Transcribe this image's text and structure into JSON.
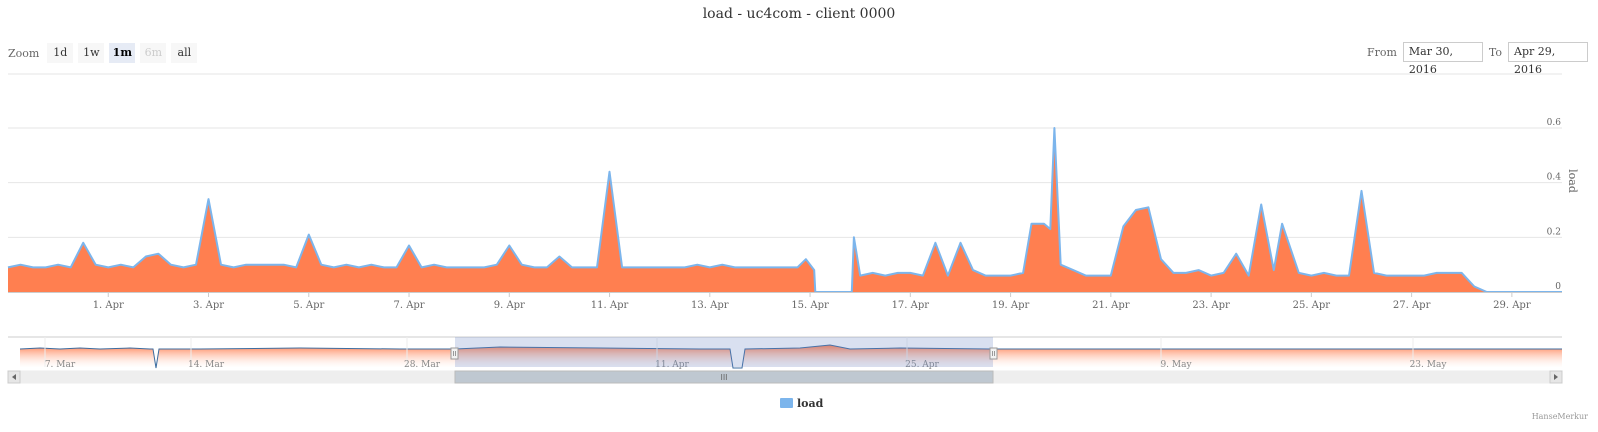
{
  "title": "load - uc4com - client 0000",
  "zoom": {
    "label": "Zoom",
    "buttons": [
      {
        "label": "1d",
        "state": "normal"
      },
      {
        "label": "1w",
        "state": "normal"
      },
      {
        "label": "1m",
        "state": "active"
      },
      {
        "label": "6m",
        "state": "disabled"
      },
      {
        "label": "all",
        "state": "normal"
      }
    ]
  },
  "range": {
    "from_label": "From",
    "from_value": "Mar 30, 2016",
    "to_label": "To",
    "to_value": "Apr 29, 2016"
  },
  "credit": "HanseMerkur",
  "colors": {
    "line": "#7cb5ec",
    "fill": "#ff7f50",
    "grid": "#e6e6e6",
    "navigator_mask": "#c6d6ec"
  },
  "navigator": {
    "tick_labels": [
      "7. Mar",
      "14. Mar",
      "28. Mar",
      "11. Apr",
      "25. Apr",
      "9. May",
      "23. May"
    ],
    "scrollbar_grip": "III"
  },
  "chart_data": {
    "type": "area",
    "xlabel": "",
    "ylabel": "load",
    "ylim": [
      0,
      0.6
    ],
    "yticks": [
      0,
      0.2,
      0.4,
      0.6
    ],
    "xlim": [
      "2016-03-30",
      "2016-04-30"
    ],
    "xtick_labels": [
      "1. Apr",
      "3. Apr",
      "5. Apr",
      "7. Apr",
      "9. Apr",
      "11. Apr",
      "13. Apr",
      "15. Apr",
      "17. Apr",
      "19. Apr",
      "21. Apr",
      "23. Apr",
      "25. Apr",
      "27. Apr",
      "29. Apr"
    ],
    "grid": true,
    "legend": "bottom-center",
    "series": [
      {
        "name": "load",
        "points": [
          [
            "2016-03-30 00:00",
            0.09
          ],
          [
            "2016-03-30 06:00",
            0.1
          ],
          [
            "2016-03-30 12:00",
            0.09
          ],
          [
            "2016-03-30 18:00",
            0.09
          ],
          [
            "2016-03-31 00:00",
            0.1
          ],
          [
            "2016-03-31 06:00",
            0.09
          ],
          [
            "2016-03-31 12:00",
            0.18
          ],
          [
            "2016-03-31 18:00",
            0.1
          ],
          [
            "2016-04-01 00:00",
            0.09
          ],
          [
            "2016-04-01 06:00",
            0.1
          ],
          [
            "2016-04-01 12:00",
            0.09
          ],
          [
            "2016-04-01 18:00",
            0.13
          ],
          [
            "2016-04-02 00:00",
            0.14
          ],
          [
            "2016-04-02 06:00",
            0.1
          ],
          [
            "2016-04-02 12:00",
            0.09
          ],
          [
            "2016-04-02 18:00",
            0.1
          ],
          [
            "2016-04-03 00:00",
            0.34
          ],
          [
            "2016-04-03 06:00",
            0.1
          ],
          [
            "2016-04-03 12:00",
            0.09
          ],
          [
            "2016-04-03 18:00",
            0.1
          ],
          [
            "2016-04-04 00:00",
            0.1
          ],
          [
            "2016-04-04 06:00",
            0.1
          ],
          [
            "2016-04-04 12:00",
            0.1
          ],
          [
            "2016-04-04 18:00",
            0.09
          ],
          [
            "2016-04-05 00:00",
            0.21
          ],
          [
            "2016-04-05 06:00",
            0.1
          ],
          [
            "2016-04-05 12:00",
            0.09
          ],
          [
            "2016-04-05 18:00",
            0.1
          ],
          [
            "2016-04-06 00:00",
            0.09
          ],
          [
            "2016-04-06 06:00",
            0.1
          ],
          [
            "2016-04-06 12:00",
            0.09
          ],
          [
            "2016-04-06 18:00",
            0.09
          ],
          [
            "2016-04-07 00:00",
            0.17
          ],
          [
            "2016-04-07 06:00",
            0.09
          ],
          [
            "2016-04-07 12:00",
            0.1
          ],
          [
            "2016-04-07 18:00",
            0.09
          ],
          [
            "2016-04-08 00:00",
            0.09
          ],
          [
            "2016-04-08 06:00",
            0.09
          ],
          [
            "2016-04-08 12:00",
            0.09
          ],
          [
            "2016-04-08 18:00",
            0.1
          ],
          [
            "2016-04-09 00:00",
            0.17
          ],
          [
            "2016-04-09 06:00",
            0.1
          ],
          [
            "2016-04-09 12:00",
            0.09
          ],
          [
            "2016-04-09 18:00",
            0.09
          ],
          [
            "2016-04-10 00:00",
            0.13
          ],
          [
            "2016-04-10 06:00",
            0.09
          ],
          [
            "2016-04-10 12:00",
            0.09
          ],
          [
            "2016-04-10 18:00",
            0.09
          ],
          [
            "2016-04-11 00:00",
            0.44
          ],
          [
            "2016-04-11 06:00",
            0.09
          ],
          [
            "2016-04-11 12:00",
            0.09
          ],
          [
            "2016-04-11 18:00",
            0.09
          ],
          [
            "2016-04-12 00:00",
            0.09
          ],
          [
            "2016-04-12 06:00",
            0.09
          ],
          [
            "2016-04-12 12:00",
            0.09
          ],
          [
            "2016-04-12 18:00",
            0.1
          ],
          [
            "2016-04-13 00:00",
            0.09
          ],
          [
            "2016-04-13 06:00",
            0.1
          ],
          [
            "2016-04-13 12:00",
            0.09
          ],
          [
            "2016-04-13 18:00",
            0.09
          ],
          [
            "2016-04-14 00:00",
            0.09
          ],
          [
            "2016-04-14 06:00",
            0.09
          ],
          [
            "2016-04-14 12:00",
            0.09
          ],
          [
            "2016-04-14 18:00",
            0.09
          ],
          [
            "2016-04-14 22:00",
            0.12
          ],
          [
            "2016-04-15 02:00",
            0.08
          ],
          [
            "2016-04-15 02:30",
            0.0
          ],
          [
            "2016-04-15 20:00",
            0.0
          ],
          [
            "2016-04-15 21:00",
            0.2
          ],
          [
            "2016-04-16 00:00",
            0.06
          ],
          [
            "2016-04-16 06:00",
            0.07
          ],
          [
            "2016-04-16 12:00",
            0.06
          ],
          [
            "2016-04-16 18:00",
            0.07
          ],
          [
            "2016-04-17 00:00",
            0.07
          ],
          [
            "2016-04-17 06:00",
            0.06
          ],
          [
            "2016-04-17 12:00",
            0.18
          ],
          [
            "2016-04-17 18:00",
            0.06
          ],
          [
            "2016-04-18 00:00",
            0.18
          ],
          [
            "2016-04-18 06:00",
            0.08
          ],
          [
            "2016-04-18 12:00",
            0.06
          ],
          [
            "2016-04-18 18:00",
            0.06
          ],
          [
            "2016-04-19 00:00",
            0.06
          ],
          [
            "2016-04-19 06:00",
            0.07
          ],
          [
            "2016-04-19 10:00",
            0.25
          ],
          [
            "2016-04-19 16:00",
            0.25
          ],
          [
            "2016-04-19 19:00",
            0.23
          ],
          [
            "2016-04-19 21:00",
            0.6
          ],
          [
            "2016-04-20 00:00",
            0.1
          ],
          [
            "2016-04-20 06:00",
            0.08
          ],
          [
            "2016-04-20 12:00",
            0.06
          ],
          [
            "2016-04-20 18:00",
            0.06
          ],
          [
            "2016-04-21 00:00",
            0.06
          ],
          [
            "2016-04-21 06:00",
            0.24
          ],
          [
            "2016-04-21 12:00",
            0.3
          ],
          [
            "2016-04-21 18:00",
            0.31
          ],
          [
            "2016-04-22 00:00",
            0.12
          ],
          [
            "2016-04-22 06:00",
            0.07
          ],
          [
            "2016-04-22 12:00",
            0.07
          ],
          [
            "2016-04-22 18:00",
            0.08
          ],
          [
            "2016-04-23 00:00",
            0.06
          ],
          [
            "2016-04-23 06:00",
            0.07
          ],
          [
            "2016-04-23 12:00",
            0.14
          ],
          [
            "2016-04-23 18:00",
            0.06
          ],
          [
            "2016-04-24 00:00",
            0.32
          ],
          [
            "2016-04-24 06:00",
            0.08
          ],
          [
            "2016-04-24 10:00",
            0.25
          ],
          [
            "2016-04-24 18:00",
            0.07
          ],
          [
            "2016-04-25 00:00",
            0.06
          ],
          [
            "2016-04-25 06:00",
            0.07
          ],
          [
            "2016-04-25 12:00",
            0.06
          ],
          [
            "2016-04-25 18:00",
            0.06
          ],
          [
            "2016-04-26 00:00",
            0.37
          ],
          [
            "2016-04-26 06:00",
            0.07
          ],
          [
            "2016-04-26 12:00",
            0.06
          ],
          [
            "2016-04-26 18:00",
            0.06
          ],
          [
            "2016-04-27 00:00",
            0.06
          ],
          [
            "2016-04-27 06:00",
            0.06
          ],
          [
            "2016-04-27 12:00",
            0.07
          ],
          [
            "2016-04-27 18:00",
            0.07
          ],
          [
            "2016-04-28 00:00",
            0.07
          ],
          [
            "2016-04-28 06:00",
            0.02
          ],
          [
            "2016-04-28 12:00",
            0.0
          ],
          [
            "2016-04-30 00:00",
            0.0
          ]
        ]
      }
    ]
  }
}
